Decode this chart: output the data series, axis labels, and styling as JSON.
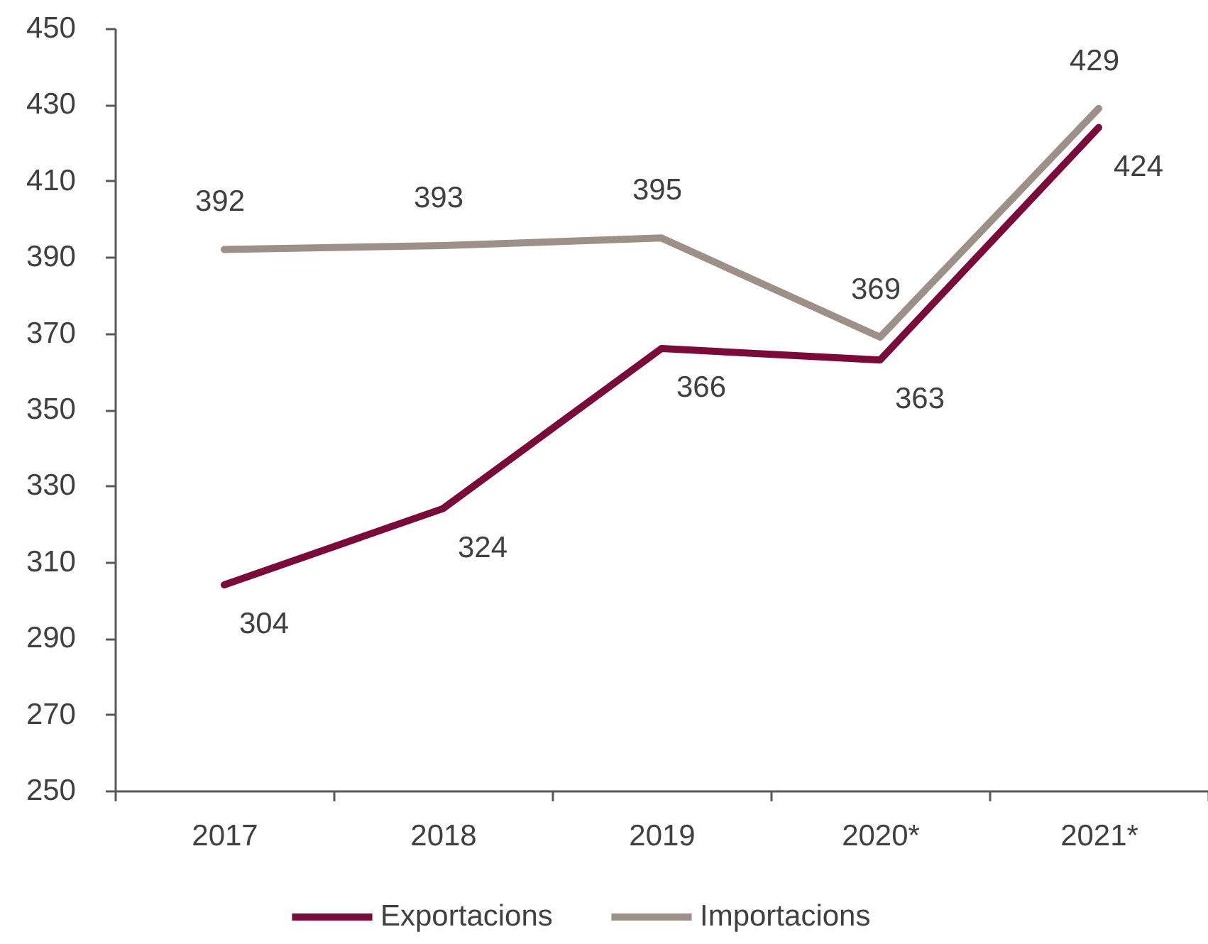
{
  "chart_data": {
    "type": "line",
    "categories": [
      "2017",
      "2018",
      "2019",
      "2020*",
      "2021*"
    ],
    "series": [
      {
        "name": "Exportacions",
        "color": "#7a0a3a",
        "values": [
          304,
          324,
          366,
          363,
          424
        ]
      },
      {
        "name": "Importacions",
        "color": "#9d9088",
        "values": [
          392,
          393,
          395,
          369,
          429
        ]
      }
    ],
    "ylim": [
      250,
      450
    ],
    "yticks": [
      250,
      270,
      290,
      310,
      330,
      350,
      370,
      390,
      410,
      430,
      450
    ],
    "data_labels": true,
    "legend": "bottom",
    "line_style": "solid"
  }
}
